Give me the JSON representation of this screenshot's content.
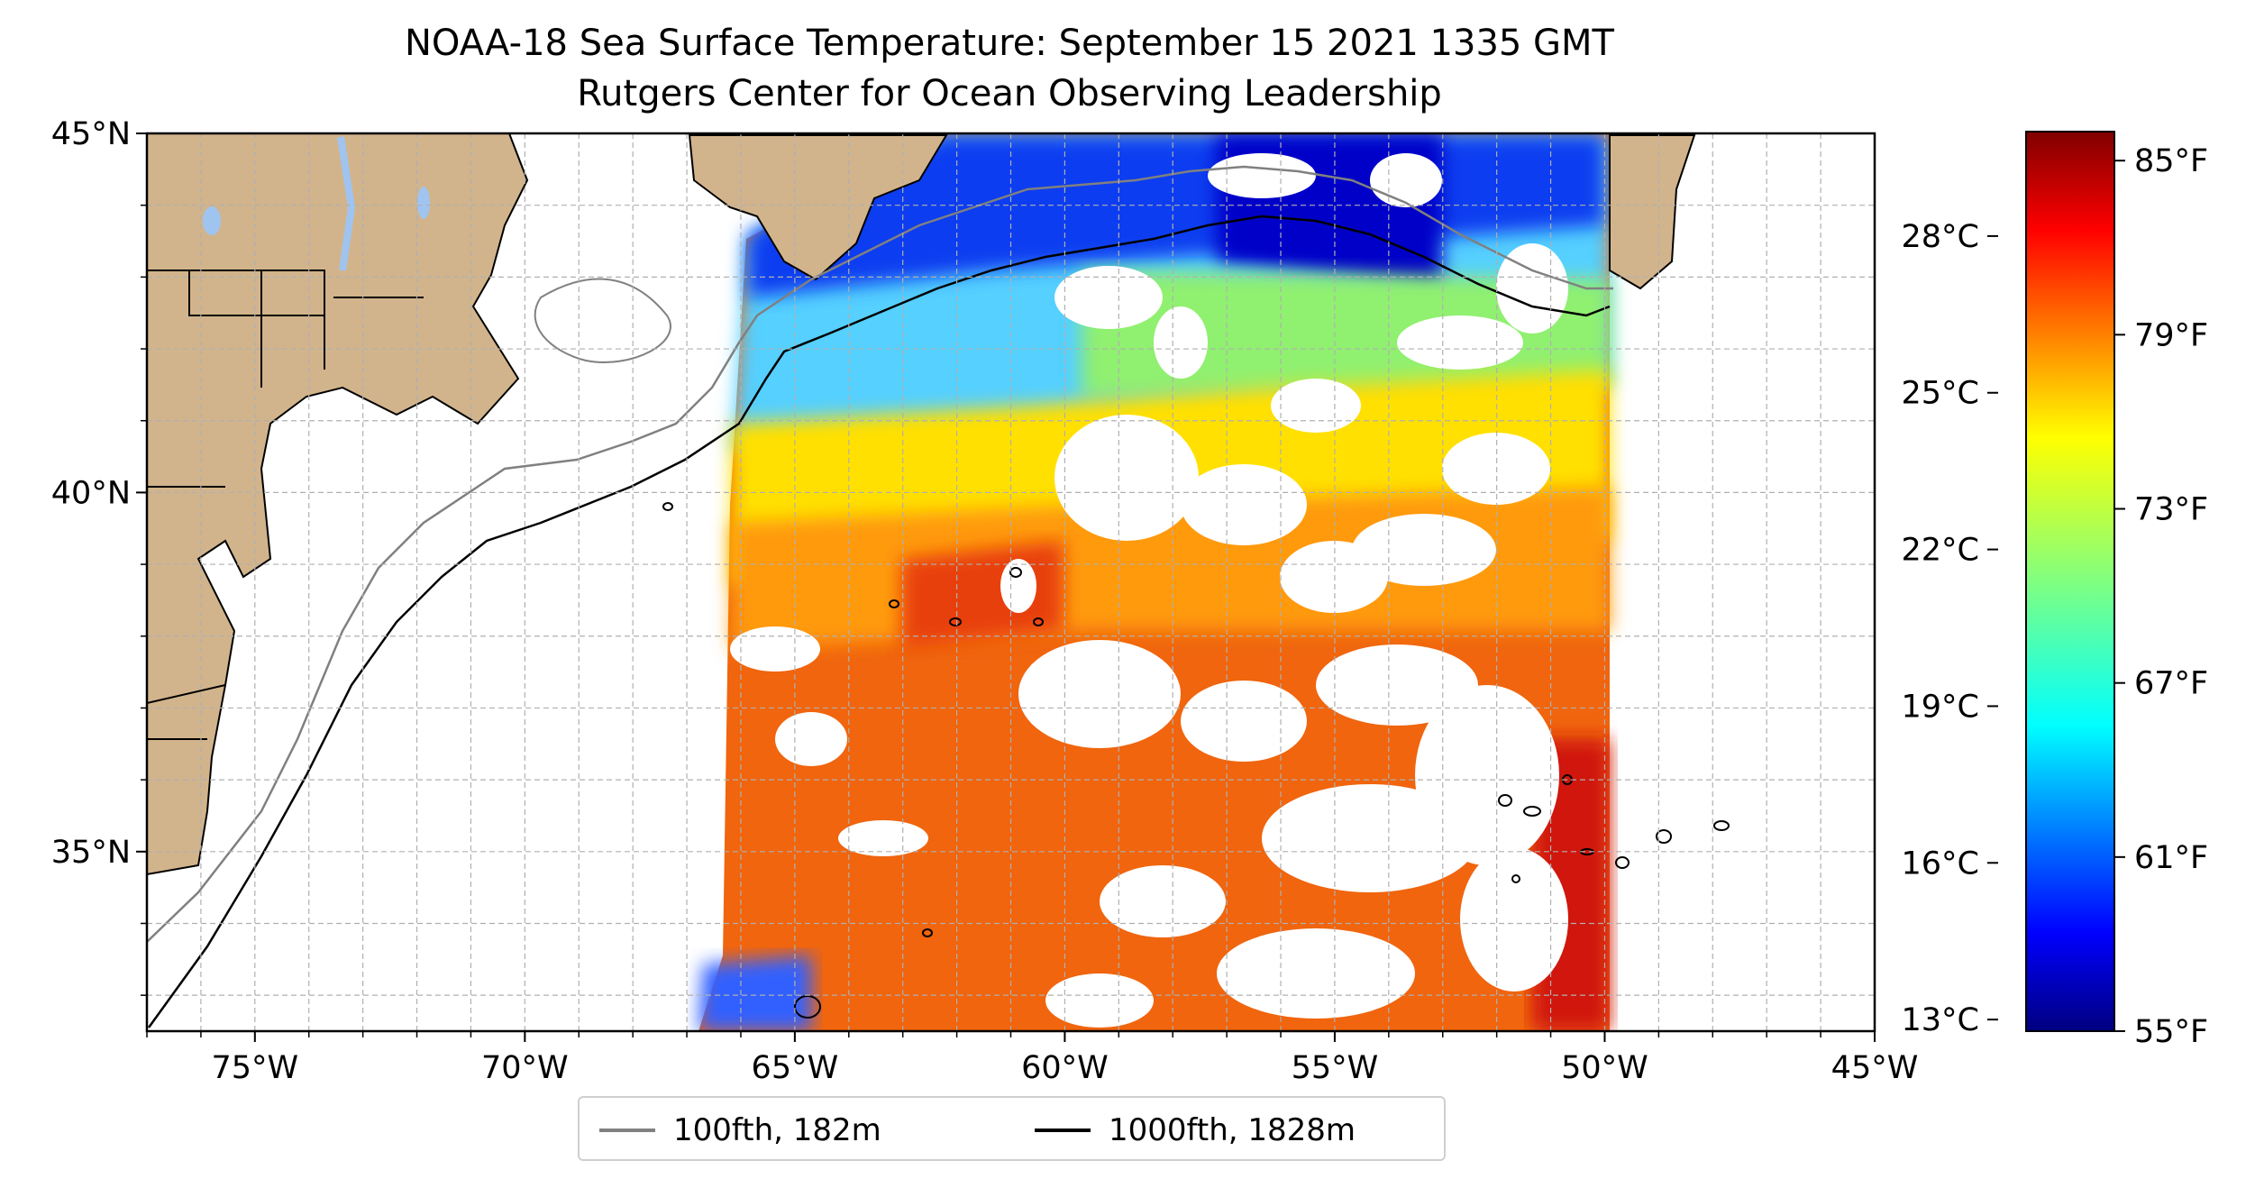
{
  "title": {
    "line1": "NOAA-18 Sea Surface Temperature: September 15 2021 1335 GMT",
    "line2": "Rutgers Center for Ocean Observing Leadership"
  },
  "map": {
    "lon_range": [
      -77,
      -45
    ],
    "lat_range": [
      32.5,
      45
    ],
    "x_ticks": [
      {
        "value": -75,
        "label": "75°W"
      },
      {
        "value": -70,
        "label": "70°W"
      },
      {
        "value": -65,
        "label": "65°W"
      },
      {
        "value": -60,
        "label": "60°W"
      },
      {
        "value": -55,
        "label": "55°W"
      },
      {
        "value": -50,
        "label": "50°W"
      },
      {
        "value": -45,
        "label": "45°W"
      }
    ],
    "y_ticks": [
      {
        "value": 45,
        "label": "45°N"
      },
      {
        "value": 40,
        "label": "40°N"
      },
      {
        "value": 35,
        "label": "35°N"
      }
    ],
    "grid": "dashed, 1° spacing",
    "colors": {
      "land": "#d2b48c",
      "lakes": "#9fc4f0",
      "contour_100fth": "#808080",
      "contour_1000fth": "#000000"
    }
  },
  "legend": {
    "placement": "below map",
    "items": [
      {
        "label": "100fth, 182m",
        "color": "#808080"
      },
      {
        "label": "1000fth, 1828m",
        "color": "#000000"
      }
    ]
  },
  "colorbar": {
    "colormap": "jet",
    "range_f": [
      55,
      86
    ],
    "celsius_ticks": [
      {
        "c": 28,
        "label": "28°C"
      },
      {
        "c": 25,
        "label": "25°C"
      },
      {
        "c": 22,
        "label": "22°C"
      },
      {
        "c": 19,
        "label": "19°C"
      },
      {
        "c": 16,
        "label": "16°C"
      },
      {
        "c": 13,
        "label": "13°C"
      }
    ],
    "fahrenheit_ticks": [
      {
        "f": 85,
        "label": "85°F"
      },
      {
        "f": 79,
        "label": "79°F"
      },
      {
        "f": 73,
        "label": "73°F"
      },
      {
        "f": 67,
        "label": "67°F"
      },
      {
        "f": 61,
        "label": "61°F"
      },
      {
        "f": 55,
        "label": "55°F"
      }
    ]
  }
}
